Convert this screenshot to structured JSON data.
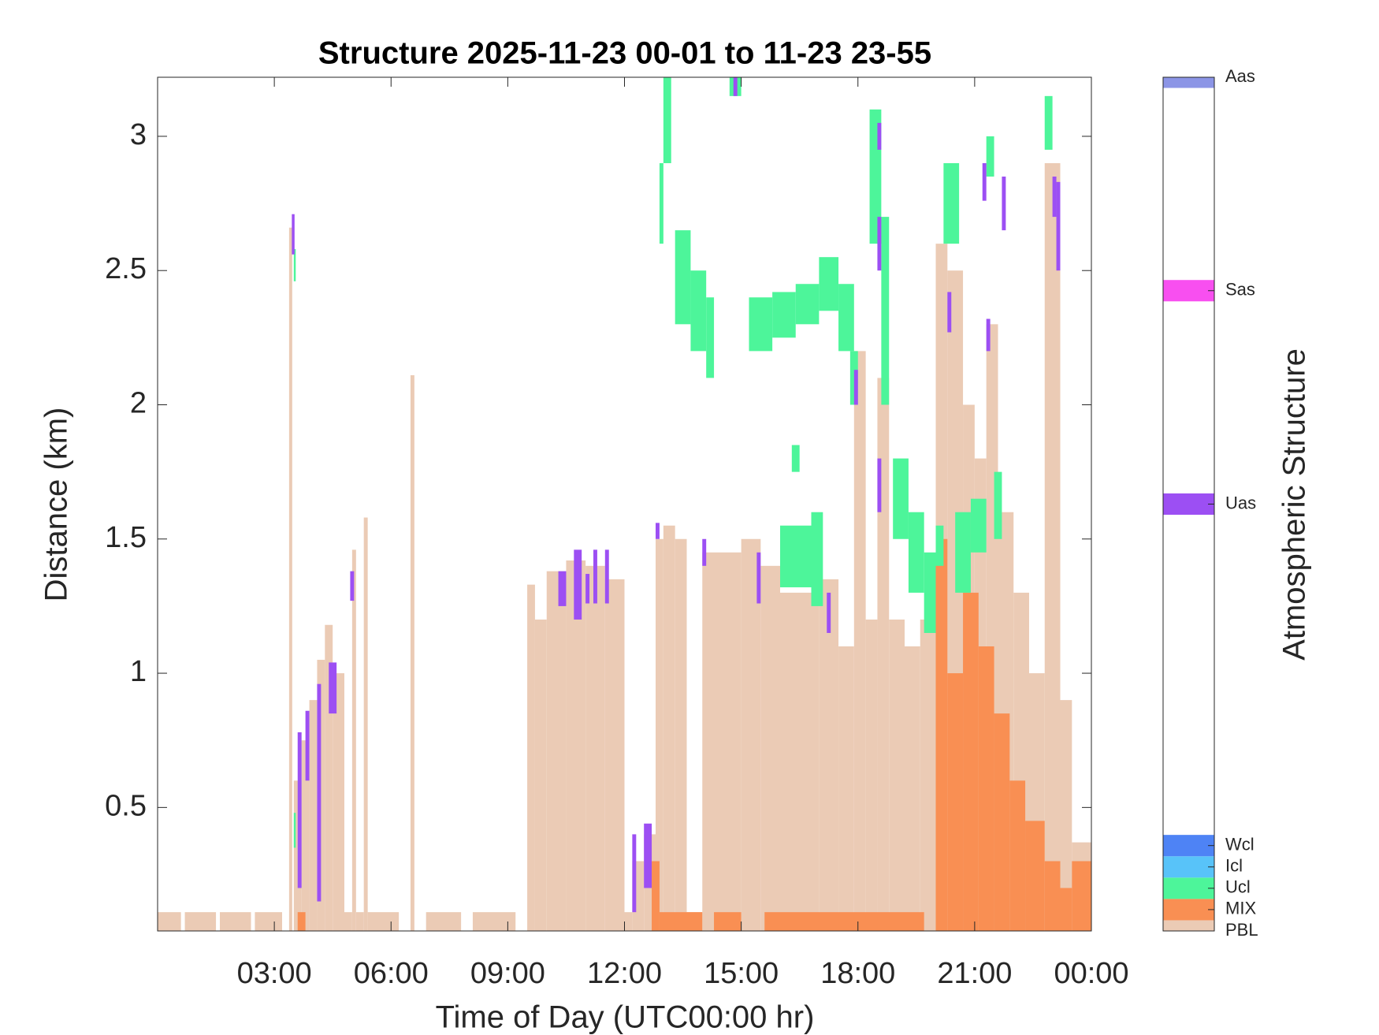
{
  "chart_data": {
    "type": "timeheight",
    "title": "Structure 2025-11-23 00-01 to 11-23 23-55",
    "x_label": "Time of Day (UTC00:00 hr)",
    "y_label": "Distance (km)",
    "colorbar_label": "Atmospheric Structure",
    "xlim": [
      0,
      24
    ],
    "xticks": [
      {
        "value": 3,
        "label": "03:00"
      },
      {
        "value": 6,
        "label": "06:00"
      },
      {
        "value": 9,
        "label": "09:00"
      },
      {
        "value": 12,
        "label": "12:00"
      },
      {
        "value": 15,
        "label": "15:00"
      },
      {
        "value": 18,
        "label": "18:00"
      },
      {
        "value": 21,
        "label": "21:00"
      },
      {
        "value": 24,
        "label": "00:00"
      }
    ],
    "ylim": [
      0.04,
      3.22
    ],
    "yticks": [
      0.5,
      1,
      1.5,
      2,
      2.5,
      3
    ],
    "clim": [
      0,
      40
    ],
    "series": [
      {
        "name": "PBL",
        "color": "#ebcbb5",
        "level": 0,
        "segments": [
          [
            0,
            0.6,
            0.04,
            0.11
          ],
          [
            0.7,
            1.5,
            0.04,
            0.11
          ],
          [
            1.6,
            2.4,
            0.04,
            0.11
          ],
          [
            2.5,
            3.2,
            0.04,
            0.11
          ],
          [
            3.38,
            3.46,
            0.04,
            2.66
          ],
          [
            3.5,
            3.7,
            0.04,
            0.6
          ],
          [
            3.7,
            3.9,
            0.04,
            0.75
          ],
          [
            3.9,
            4.1,
            0.04,
            0.9
          ],
          [
            4.1,
            4.3,
            0.04,
            1.05
          ],
          [
            4.3,
            4.5,
            0.04,
            1.18
          ],
          [
            4.5,
            4.8,
            0.04,
            1.0
          ],
          [
            4.8,
            5.0,
            0.04,
            0.11
          ],
          [
            5.0,
            5.1,
            0.04,
            1.46
          ],
          [
            5.1,
            5.3,
            0.04,
            0.11
          ],
          [
            5.3,
            5.4,
            0.04,
            1.58
          ],
          [
            5.4,
            6.2,
            0.04,
            0.11
          ],
          [
            6.5,
            6.6,
            0.04,
            2.11
          ],
          [
            6.9,
            7.8,
            0.04,
            0.11
          ],
          [
            8.1,
            9.2,
            0.04,
            0.11
          ],
          [
            9.5,
            9.7,
            0.04,
            1.33
          ],
          [
            9.7,
            10.0,
            0.04,
            1.2
          ],
          [
            10.0,
            10.5,
            0.04,
            1.38
          ],
          [
            10.5,
            11.0,
            0.04,
            1.42
          ],
          [
            11.0,
            11.5,
            0.04,
            1.4
          ],
          [
            11.5,
            12.0,
            0.04,
            1.35
          ],
          [
            12.0,
            12.2,
            0.04,
            0.11
          ],
          [
            12.2,
            12.5,
            0.04,
            0.3
          ],
          [
            12.5,
            12.8,
            0.04,
            0.4
          ],
          [
            12.8,
            13.0,
            0.04,
            1.5
          ],
          [
            13.0,
            13.3,
            0.04,
            1.55
          ],
          [
            13.3,
            13.6,
            0.04,
            1.5
          ],
          [
            13.6,
            14.0,
            0.04,
            0.11
          ],
          [
            14.0,
            15.0,
            0.04,
            1.45
          ],
          [
            15.0,
            15.5,
            0.04,
            1.5
          ],
          [
            15.5,
            16.0,
            0.04,
            1.4
          ],
          [
            16.0,
            17.0,
            0.04,
            1.3
          ],
          [
            17.0,
            17.5,
            0.04,
            1.35
          ],
          [
            17.5,
            17.9,
            0.04,
            1.1
          ],
          [
            17.9,
            18.2,
            0.04,
            2.2
          ],
          [
            18.2,
            18.5,
            0.04,
            1.2
          ],
          [
            18.5,
            18.8,
            0.04,
            2.1
          ],
          [
            18.8,
            19.2,
            0.04,
            1.2
          ],
          [
            19.2,
            19.6,
            0.04,
            1.1
          ],
          [
            19.6,
            20.0,
            0.04,
            1.2
          ],
          [
            20.0,
            20.3,
            0.04,
            2.6
          ],
          [
            20.3,
            20.7,
            0.04,
            2.5
          ],
          [
            20.7,
            21.0,
            0.04,
            2.0
          ],
          [
            21.0,
            21.3,
            0.04,
            1.8
          ],
          [
            21.3,
            21.6,
            0.04,
            2.3
          ],
          [
            21.6,
            22.0,
            0.04,
            1.6
          ],
          [
            22.0,
            22.4,
            0.04,
            1.3
          ],
          [
            22.4,
            22.8,
            0.04,
            1.0
          ],
          [
            22.8,
            23.2,
            0.04,
            2.9
          ],
          [
            23.2,
            23.5,
            0.04,
            0.9
          ],
          [
            23.5,
            24.0,
            0.04,
            0.37
          ]
        ]
      },
      {
        "name": "MIX",
        "color": "#f98f53",
        "level": 1,
        "segments": [
          [
            3.6,
            3.8,
            0.04,
            0.11
          ],
          [
            12.7,
            12.9,
            0.04,
            0.3
          ],
          [
            12.9,
            14.0,
            0.04,
            0.11
          ],
          [
            14.3,
            15.0,
            0.04,
            0.11
          ],
          [
            15.6,
            19.7,
            0.04,
            0.11
          ],
          [
            20.0,
            20.3,
            0.04,
            1.5
          ],
          [
            20.3,
            20.7,
            0.04,
            1.0
          ],
          [
            20.7,
            21.1,
            0.04,
            1.3
          ],
          [
            21.1,
            21.5,
            0.04,
            1.1
          ],
          [
            21.5,
            21.9,
            0.04,
            0.85
          ],
          [
            21.9,
            22.3,
            0.04,
            0.6
          ],
          [
            22.3,
            22.8,
            0.04,
            0.45
          ],
          [
            22.8,
            23.2,
            0.04,
            0.3
          ],
          [
            23.2,
            23.5,
            0.04,
            0.2
          ],
          [
            23.5,
            24.0,
            0.04,
            0.3
          ]
        ]
      },
      {
        "name": "Ucl",
        "color": "#4df59a",
        "level": 2,
        "segments": [
          [
            3.5,
            3.55,
            2.46,
            2.58
          ],
          [
            3.5,
            3.55,
            0.35,
            0.48
          ],
          [
            12.9,
            13.0,
            2.6,
            2.9
          ],
          [
            13.0,
            13.2,
            2.9,
            3.22
          ],
          [
            13.3,
            13.7,
            2.3,
            2.65
          ],
          [
            13.7,
            14.1,
            2.2,
            2.5
          ],
          [
            14.1,
            14.3,
            2.1,
            2.4
          ],
          [
            14.7,
            15.0,
            3.15,
            3.22
          ],
          [
            15.2,
            15.8,
            2.2,
            2.4
          ],
          [
            15.8,
            16.4,
            2.25,
            2.42
          ],
          [
            16.4,
            17.0,
            2.3,
            2.45
          ],
          [
            17.0,
            17.5,
            2.35,
            2.55
          ],
          [
            17.5,
            17.9,
            2.2,
            2.45
          ],
          [
            17.8,
            18.0,
            2.0,
            2.2
          ],
          [
            18.3,
            18.6,
            2.6,
            3.1
          ],
          [
            18.6,
            18.8,
            2.0,
            2.7
          ],
          [
            16.3,
            16.5,
            1.75,
            1.85
          ],
          [
            16.0,
            16.8,
            1.32,
            1.55
          ],
          [
            16.8,
            17.1,
            1.25,
            1.6
          ],
          [
            18.9,
            19.3,
            1.5,
            1.8
          ],
          [
            19.3,
            19.7,
            1.3,
            1.6
          ],
          [
            19.7,
            20.0,
            1.15,
            1.45
          ],
          [
            20.0,
            20.2,
            1.4,
            1.55
          ],
          [
            20.2,
            20.6,
            2.6,
            2.9
          ],
          [
            20.5,
            20.9,
            1.3,
            1.6
          ],
          [
            20.9,
            21.3,
            1.45,
            1.65
          ],
          [
            21.3,
            21.5,
            2.85,
            3.0
          ],
          [
            21.5,
            21.7,
            1.5,
            1.75
          ],
          [
            22.8,
            23.0,
            2.95,
            3.15
          ]
        ]
      },
      {
        "name": "Icl",
        "color": "#58c3f9",
        "level": 3,
        "segments": []
      },
      {
        "name": "Wcl",
        "color": "#4e83f5",
        "level": 4,
        "segments": []
      },
      {
        "name": "Uas",
        "color": "#9c4ff3",
        "level": 20,
        "segments": [
          [
            3.45,
            3.52,
            2.56,
            2.71
          ],
          [
            3.6,
            3.7,
            0.2,
            0.78
          ],
          [
            3.8,
            3.9,
            0.6,
            0.86
          ],
          [
            4.1,
            4.2,
            0.15,
            0.96
          ],
          [
            4.4,
            4.6,
            0.85,
            1.04
          ],
          [
            4.95,
            5.05,
            1.27,
            1.38
          ],
          [
            10.3,
            10.5,
            1.25,
            1.38
          ],
          [
            10.7,
            10.9,
            1.2,
            1.46
          ],
          [
            11.0,
            11.1,
            1.26,
            1.37
          ],
          [
            11.2,
            11.3,
            1.26,
            1.46
          ],
          [
            11.5,
            11.6,
            1.26,
            1.46
          ],
          [
            12.2,
            12.3,
            0.11,
            0.4
          ],
          [
            12.5,
            12.7,
            0.2,
            0.44
          ],
          [
            12.8,
            12.9,
            1.5,
            1.56
          ],
          [
            14.0,
            14.1,
            1.4,
            1.5
          ],
          [
            14.8,
            14.9,
            3.15,
            3.22
          ],
          [
            15.4,
            15.5,
            1.26,
            1.45
          ],
          [
            17.2,
            17.3,
            1.15,
            1.3
          ],
          [
            17.9,
            18.0,
            2.0,
            2.13
          ],
          [
            18.5,
            18.6,
            1.6,
            1.8
          ],
          [
            18.5,
            18.6,
            2.5,
            2.7
          ],
          [
            18.5,
            18.6,
            2.95,
            3.05
          ],
          [
            20.3,
            20.4,
            2.27,
            2.42
          ],
          [
            21.2,
            21.3,
            2.76,
            2.9
          ],
          [
            21.3,
            21.4,
            2.2,
            2.32
          ],
          [
            21.7,
            21.8,
            2.65,
            2.85
          ],
          [
            23.0,
            23.1,
            2.7,
            2.85
          ],
          [
            23.1,
            23.2,
            2.5,
            2.83
          ]
        ]
      },
      {
        "name": "Sas",
        "color": "#f84ff0",
        "level": 30,
        "segments": []
      },
      {
        "name": "Aas",
        "color": "#8c95e6",
        "level": 40,
        "segments": []
      }
    ]
  }
}
